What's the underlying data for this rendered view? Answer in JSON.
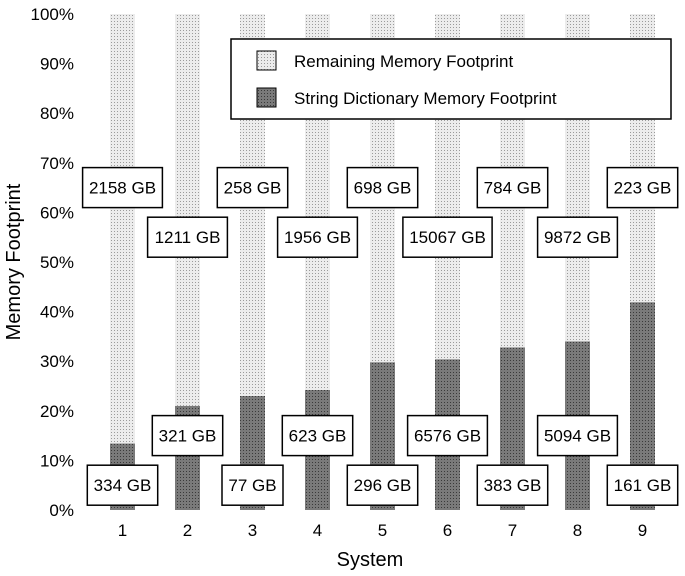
{
  "chart_data": {
    "type": "bar",
    "stacked": true,
    "normalized": true,
    "xlabel": "System",
    "ylabel": "Memory Footprint",
    "ylim": [
      0,
      100
    ],
    "yticks": [
      "0%",
      "10%",
      "20%",
      "30%",
      "40%",
      "50%",
      "60%",
      "70%",
      "80%",
      "90%",
      "100%"
    ],
    "categories": [
      "1",
      "2",
      "3",
      "4",
      "5",
      "6",
      "7",
      "8",
      "9"
    ],
    "series": [
      {
        "name": "String Dictionary Memory Footprint",
        "values": [
          13.4,
          21.0,
          23.0,
          24.2,
          29.8,
          30.4,
          32.8,
          34.0,
          41.9
        ],
        "labels": [
          "334 GB",
          "321 GB",
          "77 GB",
          "623 GB",
          "296 GB",
          "6576 GB",
          "383 GB",
          "5094 GB",
          "161 GB"
        ],
        "color": "#707070",
        "pattern": "dense-dots"
      },
      {
        "name": "Remaining Memory Footprint",
        "values": [
          86.6,
          79.0,
          77.0,
          75.8,
          70.2,
          69.6,
          67.2,
          66.0,
          58.1
        ],
        "labels": [
          "2158 GB",
          "1211 GB",
          "258 GB",
          "1956 GB",
          "698 GB",
          "15067 GB",
          "784 GB",
          "9872 GB",
          "223 GB"
        ],
        "color": "#e8e8e8",
        "pattern": "light-dots"
      }
    ],
    "legend": {
      "position": "top-right",
      "order": [
        "Remaining Memory Footprint",
        "String Dictionary Memory Footprint"
      ]
    },
    "grid": false
  }
}
